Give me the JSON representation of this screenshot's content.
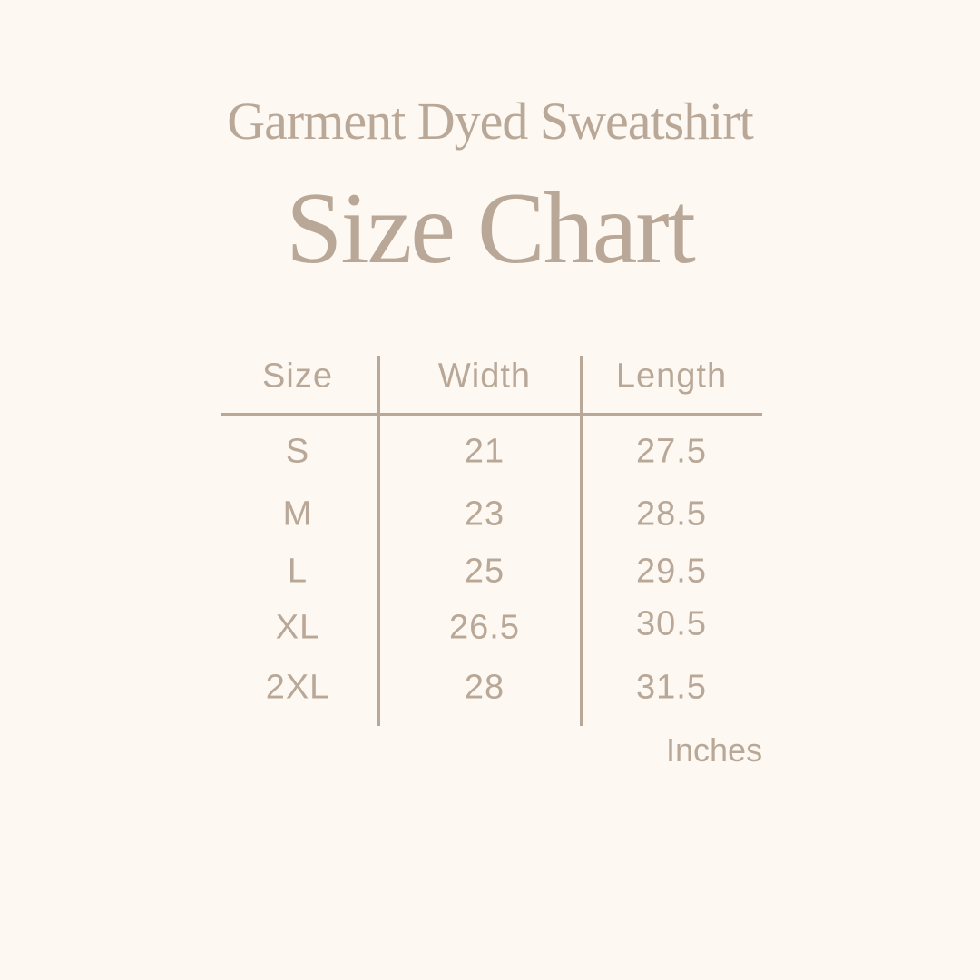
{
  "title": "Garment Dyed Sweatshirt",
  "subtitle": "Size Chart",
  "colors": {
    "background": "#fdf8f1",
    "text": "#b9a897"
  },
  "table": {
    "headers": [
      "Size",
      "Width",
      "Length"
    ],
    "rows": [
      [
        "S",
        "21",
        "27.5"
      ],
      [
        "M",
        "23",
        "28.5"
      ],
      [
        "L",
        "25",
        "29.5"
      ],
      [
        "XL",
        "26.5",
        "30.5"
      ],
      [
        "2XL",
        "28",
        "31.5"
      ]
    ],
    "unit": "Inches"
  }
}
